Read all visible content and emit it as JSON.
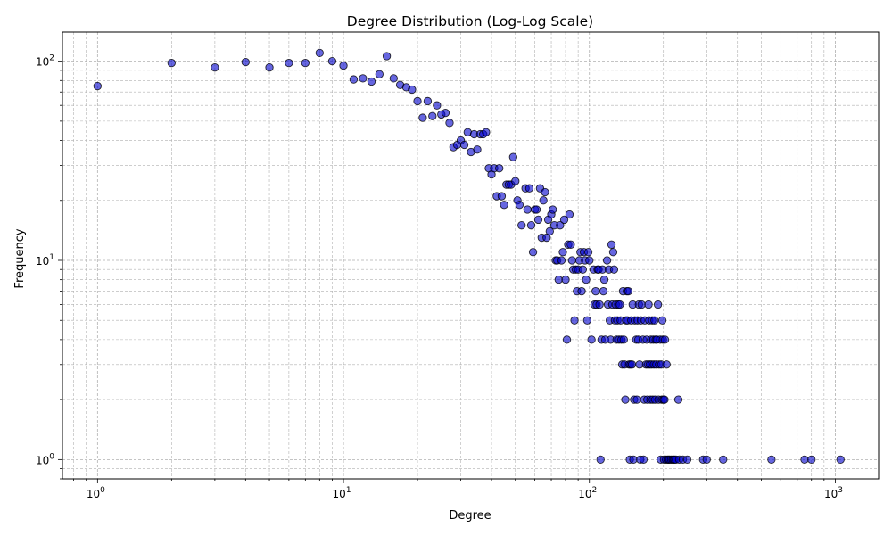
{
  "chart_data": {
    "type": "scatter",
    "title": "Degree Distribution (Log-Log Scale)",
    "xlabel": "Degree",
    "ylabel": "Frequency",
    "xscale": "log",
    "yscale": "log",
    "xlim": [
      0.72,
      1500
    ],
    "ylim": [
      0.8,
      140
    ],
    "grid": true,
    "marker_fill": "#0000cc",
    "marker_edge": "#000000",
    "xticks": [
      {
        "value": 1,
        "base": "10",
        "exp": "0"
      },
      {
        "value": 10,
        "base": "10",
        "exp": "1"
      },
      {
        "value": 100,
        "base": "10",
        "exp": "2"
      },
      {
        "value": 1000,
        "base": "10",
        "exp": "3"
      }
    ],
    "yticks": [
      {
        "value": 1,
        "base": "10",
        "exp": "0"
      },
      {
        "value": 10,
        "base": "10",
        "exp": "1"
      },
      {
        "value": 100,
        "base": "10",
        "exp": "2"
      }
    ],
    "points": [
      [
        1,
        75
      ],
      [
        2,
        98
      ],
      [
        3,
        93
      ],
      [
        4,
        99
      ],
      [
        5,
        93
      ],
      [
        6,
        98
      ],
      [
        7,
        98
      ],
      [
        8,
        110
      ],
      [
        9,
        100
      ],
      [
        10,
        95
      ],
      [
        11,
        81
      ],
      [
        12,
        82
      ],
      [
        13,
        79
      ],
      [
        14,
        86
      ],
      [
        15,
        106
      ],
      [
        16,
        82
      ],
      [
        17,
        76
      ],
      [
        18,
        74
      ],
      [
        19,
        72
      ],
      [
        20,
        63
      ],
      [
        21,
        52
      ],
      [
        22,
        63
      ],
      [
        23,
        53
      ],
      [
        24,
        60
      ],
      [
        25,
        54
      ],
      [
        26,
        55
      ],
      [
        27,
        49
      ],
      [
        28,
        37
      ],
      [
        29,
        38
      ],
      [
        30,
        40
      ],
      [
        31,
        38
      ],
      [
        32,
        44
      ],
      [
        33,
        35
      ],
      [
        34,
        43
      ],
      [
        35,
        36
      ],
      [
        36,
        43
      ],
      [
        37,
        43
      ],
      [
        38,
        44
      ],
      [
        39,
        29
      ],
      [
        40,
        27
      ],
      [
        41,
        29
      ],
      [
        42,
        21
      ],
      [
        43,
        29
      ],
      [
        44,
        21
      ],
      [
        45,
        19
      ],
      [
        46,
        24
      ],
      [
        47,
        24
      ],
      [
        48,
        24
      ],
      [
        49,
        33
      ],
      [
        50,
        25
      ],
      [
        51,
        20
      ],
      [
        52,
        19
      ],
      [
        53,
        15
      ],
      [
        55,
        23
      ],
      [
        56,
        18
      ],
      [
        57,
        23
      ],
      [
        58,
        15
      ],
      [
        59,
        11
      ],
      [
        60,
        18
      ],
      [
        61,
        18
      ],
      [
        62,
        16
      ],
      [
        63,
        23
      ],
      [
        64,
        13
      ],
      [
        65,
        20
      ],
      [
        66,
        22
      ],
      [
        67,
        13
      ],
      [
        68,
        16
      ],
      [
        69,
        14
      ],
      [
        70,
        17
      ],
      [
        71,
        18
      ],
      [
        72,
        15
      ],
      [
        73,
        10
      ],
      [
        74,
        10
      ],
      [
        75,
        8
      ],
      [
        76,
        15
      ],
      [
        77,
        10
      ],
      [
        78,
        11
      ],
      [
        79,
        16
      ],
      [
        80,
        8
      ],
      [
        81,
        4
      ],
      [
        82,
        12
      ],
      [
        83,
        17
      ],
      [
        84,
        12
      ],
      [
        85,
        10
      ],
      [
        86,
        9
      ],
      [
        87,
        5
      ],
      [
        88,
        9
      ],
      [
        89,
        7
      ],
      [
        90,
        9
      ],
      [
        91,
        10
      ],
      [
        92,
        11
      ],
      [
        93,
        7
      ],
      [
        94,
        9
      ],
      [
        95,
        11
      ],
      [
        96,
        10
      ],
      [
        97,
        8
      ],
      [
        98,
        5
      ],
      [
        99,
        11
      ],
      [
        100,
        10
      ],
      [
        102,
        4
      ],
      [
        104,
        9
      ],
      [
        105,
        6
      ],
      [
        106,
        7
      ],
      [
        107,
        6
      ],
      [
        108,
        9
      ],
      [
        109,
        9
      ],
      [
        110,
        6
      ],
      [
        111,
        1
      ],
      [
        112,
        4
      ],
      [
        113,
        9
      ],
      [
        114,
        7
      ],
      [
        115,
        8
      ],
      [
        116,
        4
      ],
      [
        118,
        10
      ],
      [
        119,
        6
      ],
      [
        120,
        9
      ],
      [
        121,
        5
      ],
      [
        122,
        4
      ],
      [
        123,
        12
      ],
      [
        124,
        6
      ],
      [
        125,
        11
      ],
      [
        126,
        9
      ],
      [
        127,
        5
      ],
      [
        128,
        6
      ],
      [
        129,
        4
      ],
      [
        130,
        5
      ],
      [
        131,
        6
      ],
      [
        132,
        4
      ],
      [
        133,
        6
      ],
      [
        134,
        5
      ],
      [
        135,
        4
      ],
      [
        136,
        3
      ],
      [
        137,
        7
      ],
      [
        138,
        4
      ],
      [
        139,
        3
      ],
      [
        140,
        2
      ],
      [
        141,
        5
      ],
      [
        142,
        7
      ],
      [
        143,
        5
      ],
      [
        144,
        7
      ],
      [
        145,
        3
      ],
      [
        146,
        1
      ],
      [
        147,
        3
      ],
      [
        148,
        5
      ],
      [
        149,
        3
      ],
      [
        150,
        6
      ],
      [
        151,
        1
      ],
      [
        152,
        2
      ],
      [
        153,
        5
      ],
      [
        155,
        4
      ],
      [
        156,
        2
      ],
      [
        157,
        5
      ],
      [
        158,
        4
      ],
      [
        159,
        6
      ],
      [
        160,
        3
      ],
      [
        161,
        1
      ],
      [
        162,
        5
      ],
      [
        163,
        6
      ],
      [
        165,
        4
      ],
      [
        166,
        1
      ],
      [
        167,
        2
      ],
      [
        168,
        5
      ],
      [
        170,
        3
      ],
      [
        171,
        4
      ],
      [
        172,
        2
      ],
      [
        173,
        3
      ],
      [
        174,
        6
      ],
      [
        175,
        5
      ],
      [
        176,
        3
      ],
      [
        177,
        2
      ],
      [
        178,
        4
      ],
      [
        179,
        3
      ],
      [
        180,
        5
      ],
      [
        181,
        2
      ],
      [
        182,
        4
      ],
      [
        183,
        3
      ],
      [
        184,
        5
      ],
      [
        185,
        2
      ],
      [
        186,
        4
      ],
      [
        187,
        3
      ],
      [
        188,
        4
      ],
      [
        190,
        6
      ],
      [
        191,
        2
      ],
      [
        192,
        3
      ],
      [
        194,
        4
      ],
      [
        195,
        1
      ],
      [
        196,
        3
      ],
      [
        197,
        2
      ],
      [
        198,
        5
      ],
      [
        199,
        4
      ],
      [
        200,
        2
      ],
      [
        201,
        1
      ],
      [
        202,
        2
      ],
      [
        203,
        4
      ],
      [
        205,
        1
      ],
      [
        206,
        3
      ],
      [
        208,
        1
      ],
      [
        210,
        1
      ],
      [
        212,
        1
      ],
      [
        215,
        1
      ],
      [
        218,
        1
      ],
      [
        220,
        1
      ],
      [
        222,
        1
      ],
      [
        225,
        1
      ],
      [
        230,
        2
      ],
      [
        232,
        1
      ],
      [
        240,
        1
      ],
      [
        250,
        1
      ],
      [
        290,
        1
      ],
      [
        300,
        1
      ],
      [
        350,
        1
      ],
      [
        550,
        1
      ],
      [
        750,
        1
      ],
      [
        800,
        1
      ],
      [
        1050,
        1
      ]
    ]
  }
}
